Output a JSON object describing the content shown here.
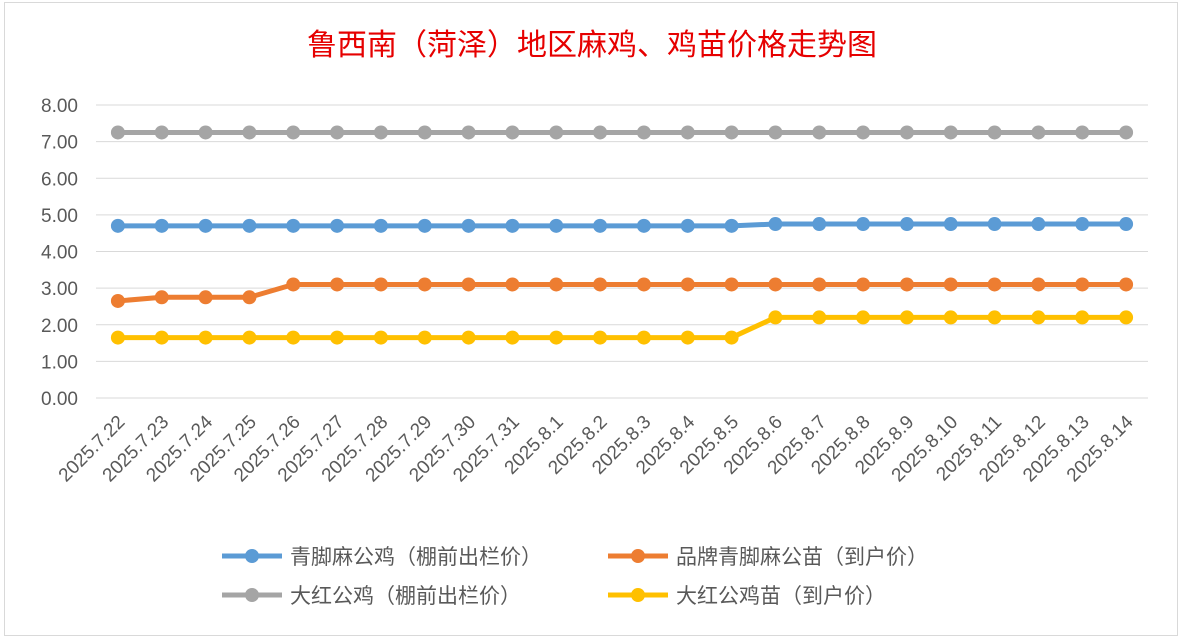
{
  "chart_data": {
    "type": "line",
    "title": "鲁西南（菏泽）地区麻鸡、鸡苗价格走势图",
    "xlabel": "",
    "ylabel": "",
    "ylim": [
      0,
      8
    ],
    "yticks": [
      "0.00",
      "1.00",
      "2.00",
      "3.00",
      "4.00",
      "5.00",
      "6.00",
      "7.00",
      "8.00"
    ],
    "grid": true,
    "legend_position": "bottom",
    "categories": [
      "2025.7.22",
      "2025.7.23",
      "2025.7.24",
      "2025.7.25",
      "2025.7.26",
      "2025.7.27",
      "2025.7.28",
      "2025.7.29",
      "2025.7.30",
      "2025.7.31",
      "2025.8.1",
      "2025.8.2",
      "2025.8.3",
      "2025.8.4",
      "2025.8.5",
      "2025.8.6",
      "2025.8.7",
      "2025.8.8",
      "2025.8.9",
      "2025.8.10",
      "2025.8.11",
      "2025.8.12",
      "2025.8.13",
      "2025.8.14"
    ],
    "series": [
      {
        "name": "青脚麻公鸡（棚前出栏价）",
        "color": "#5b9bd5",
        "values": [
          4.7,
          4.7,
          4.7,
          4.7,
          4.7,
          4.7,
          4.7,
          4.7,
          4.7,
          4.7,
          4.7,
          4.7,
          4.7,
          4.7,
          4.7,
          4.75,
          4.75,
          4.75,
          4.75,
          4.75,
          4.75,
          4.75,
          4.75,
          4.75
        ]
      },
      {
        "name": "品牌青脚麻公苗（到户价）",
        "color": "#ed7d31",
        "values": [
          2.65,
          2.75,
          2.75,
          2.75,
          3.1,
          3.1,
          3.1,
          3.1,
          3.1,
          3.1,
          3.1,
          3.1,
          3.1,
          3.1,
          3.1,
          3.1,
          3.1,
          3.1,
          3.1,
          3.1,
          3.1,
          3.1,
          3.1,
          3.1
        ]
      },
      {
        "name": "大红公鸡（棚前出栏价）",
        "color": "#a5a5a5",
        "values": [
          7.25,
          7.25,
          7.25,
          7.25,
          7.25,
          7.25,
          7.25,
          7.25,
          7.25,
          7.25,
          7.25,
          7.25,
          7.25,
          7.25,
          7.25,
          7.25,
          7.25,
          7.25,
          7.25,
          7.25,
          7.25,
          7.25,
          7.25,
          7.25
        ]
      },
      {
        "name": "大红公鸡苗（到户价）",
        "color": "#ffc000",
        "values": [
          1.65,
          1.65,
          1.65,
          1.65,
          1.65,
          1.65,
          1.65,
          1.65,
          1.65,
          1.65,
          1.65,
          1.65,
          1.65,
          1.65,
          1.65,
          2.2,
          2.2,
          2.2,
          2.2,
          2.2,
          2.2,
          2.2,
          2.2,
          2.2
        ]
      }
    ]
  }
}
